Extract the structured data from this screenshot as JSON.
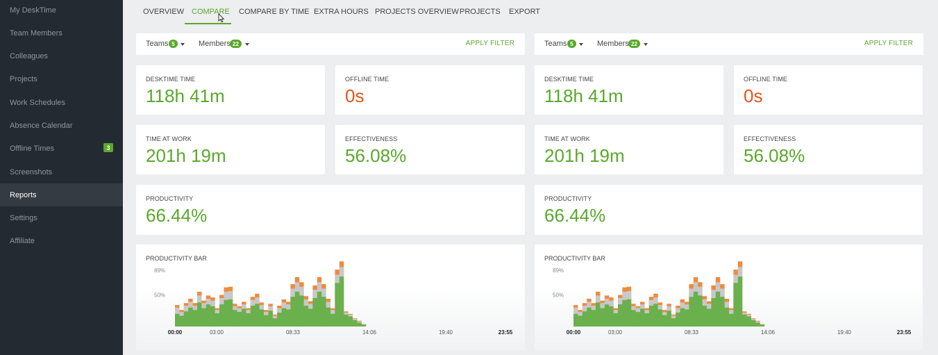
{
  "sidebar": {
    "items": [
      {
        "label": "My DeskTime",
        "name": "sidebar-item-my-desktime"
      },
      {
        "label": "Team Members",
        "name": "sidebar-item-team-members"
      },
      {
        "label": "Colleagues",
        "name": "sidebar-item-colleagues"
      },
      {
        "label": "Projects",
        "name": "sidebar-item-projects"
      },
      {
        "label": "Work Schedules",
        "name": "sidebar-item-work-schedules"
      },
      {
        "label": "Absence Calendar",
        "name": "sidebar-item-absence-calendar"
      },
      {
        "label": "Offline Times",
        "name": "sidebar-item-offline-times",
        "badge": "3"
      },
      {
        "label": "Screenshots",
        "name": "sidebar-item-screenshots"
      },
      {
        "label": "Reports",
        "name": "sidebar-item-reports",
        "active": true
      },
      {
        "label": "Settings",
        "name": "sidebar-item-settings"
      },
      {
        "label": "Affiliate",
        "name": "sidebar-item-affiliate"
      }
    ]
  },
  "tabs": [
    {
      "label": "OVERVIEW"
    },
    {
      "label": "COMPARE",
      "active": true
    },
    {
      "label": "COMPARE BY TIME"
    },
    {
      "label": "EXTRA HOURS"
    },
    {
      "label": "PROJECTS OVERVIEW"
    },
    {
      "label": "PROJECTS"
    },
    {
      "label": "EXPORT"
    }
  ],
  "colors": {
    "accent": "#5aa82c",
    "offline": "#e4541c",
    "bar_orange": "#f08a3c",
    "bar_gray": "#c8c8c8",
    "bar_green": "#6ab04c"
  },
  "panels": [
    {
      "filter": {
        "teams_label": "Teams",
        "teams_count": "5",
        "members_label": "Members",
        "members_count": "22",
        "apply_label": "APPLY FILTER"
      },
      "cards": {
        "desktime": {
          "label": "DESKTIME TIME",
          "value": "118h 41m"
        },
        "offline": {
          "label": "OFFLINE TIME",
          "value": "0s"
        },
        "atwork": {
          "label": "TIME AT WORK",
          "value": "201h 19m"
        },
        "effectiveness": {
          "label": "EFFECTIVENESS",
          "value": "56.08%"
        },
        "productivity": {
          "label": "PRODUCTIVITY",
          "value": "66.44%"
        }
      },
      "prodbar": {
        "label": "PRODUCTIVITY BAR"
      }
    },
    {
      "filter": {
        "teams_label": "Teams",
        "teams_count": "5",
        "members_label": "Members",
        "members_count": "22",
        "apply_label": "APPLY FILTER"
      },
      "cards": {
        "desktime": {
          "label": "DESKTIME TIME",
          "value": "118h 41m"
        },
        "offline": {
          "label": "OFFLINE TIME",
          "value": "0s"
        },
        "atwork": {
          "label": "TIME AT WORK",
          "value": "201h 19m"
        },
        "effectiveness": {
          "label": "EFFECTIVENESS",
          "value": "56.08%"
        },
        "productivity": {
          "label": "PRODUCTIVITY",
          "value": "66.44%"
        }
      },
      "prodbar": {
        "label": "PRODUCTIVITY BAR"
      }
    }
  ],
  "chart_data": [
    {
      "type": "area",
      "title": "PRODUCTIVITY BAR",
      "y_ticks": [
        "89%",
        "50%"
      ],
      "x_ticks": [
        "00:00",
        "03:00",
        "08:33",
        "14:06",
        "19:40",
        "23:55"
      ],
      "bold_x_ticks": [
        "00:00",
        "23:55"
      ],
      "ylim": [
        0,
        89
      ],
      "series": [
        {
          "color": "bar_green",
          "values": [
            20,
            17,
            24,
            30,
            26,
            38,
            29,
            35,
            32,
            21,
            35,
            42,
            43,
            26,
            23,
            28,
            21,
            33,
            36,
            27,
            18,
            25,
            13,
            22,
            29,
            27,
            47,
            55,
            49,
            33,
            28,
            45,
            55,
            47,
            30,
            20,
            69,
            79,
            19,
            16,
            10,
            6,
            3,
            0,
            0,
            0,
            0,
            0,
            0,
            0,
            0,
            0,
            0,
            0,
            0,
            0
          ]
        },
        {
          "color": "bar_gray",
          "values": [
            10,
            6,
            9,
            9,
            7,
            11,
            8,
            9,
            9,
            5,
            10,
            13,
            13,
            6,
            6,
            7,
            5,
            9,
            10,
            7,
            5,
            7,
            4,
            7,
            9,
            8,
            13,
            15,
            14,
            10,
            8,
            13,
            15,
            13,
            9,
            6,
            13,
            15,
            3,
            3,
            2,
            2,
            1,
            0,
            0,
            0,
            0,
            0,
            0,
            0,
            0,
            0,
            0,
            0,
            0,
            0
          ]
        },
        {
          "color": "bar_orange",
          "values": [
            4,
            3,
            4,
            5,
            4,
            6,
            4,
            5,
            5,
            3,
            5,
            7,
            7,
            4,
            3,
            4,
            3,
            5,
            6,
            4,
            3,
            4,
            2,
            4,
            5,
            4,
            7,
            8,
            7,
            5,
            4,
            7,
            8,
            7,
            5,
            3,
            8,
            9,
            2,
            1,
            1,
            1,
            0,
            0,
            0,
            0,
            0,
            0,
            0,
            0,
            0,
            0,
            0,
            0,
            0,
            0
          ]
        }
      ]
    },
    {
      "type": "area",
      "title": "PRODUCTIVITY BAR",
      "y_ticks": [
        "89%",
        "50%"
      ],
      "x_ticks": [
        "00:00",
        "03:00",
        "08:33",
        "14:06",
        "19:40",
        "23:55"
      ],
      "bold_x_ticks": [
        "00:00",
        "23:55"
      ],
      "ylim": [
        0,
        89
      ],
      "series": [
        {
          "color": "bar_green",
          "values": [
            20,
            17,
            24,
            30,
            26,
            38,
            29,
            35,
            32,
            21,
            35,
            42,
            43,
            26,
            23,
            28,
            21,
            33,
            36,
            27,
            18,
            25,
            13,
            22,
            29,
            27,
            47,
            55,
            49,
            33,
            28,
            45,
            55,
            47,
            30,
            20,
            69,
            79,
            19,
            16,
            10,
            6,
            3,
            0,
            0,
            0,
            0,
            0,
            0,
            0,
            0,
            0,
            0,
            0,
            0,
            0
          ]
        },
        {
          "color": "bar_gray",
          "values": [
            10,
            6,
            9,
            9,
            7,
            11,
            8,
            9,
            9,
            5,
            10,
            13,
            13,
            6,
            6,
            7,
            5,
            9,
            10,
            7,
            5,
            7,
            4,
            7,
            9,
            8,
            13,
            15,
            14,
            10,
            8,
            13,
            15,
            13,
            9,
            6,
            13,
            15,
            3,
            3,
            2,
            2,
            1,
            0,
            0,
            0,
            0,
            0,
            0,
            0,
            0,
            0,
            0,
            0,
            0,
            0
          ]
        },
        {
          "color": "bar_orange",
          "values": [
            4,
            3,
            4,
            5,
            4,
            6,
            4,
            5,
            5,
            3,
            5,
            7,
            7,
            4,
            3,
            4,
            3,
            5,
            6,
            4,
            3,
            4,
            2,
            4,
            5,
            4,
            7,
            8,
            7,
            5,
            4,
            7,
            8,
            7,
            5,
            3,
            8,
            9,
            2,
            1,
            1,
            1,
            0,
            0,
            0,
            0,
            0,
            0,
            0,
            0,
            0,
            0,
            0,
            0,
            0,
            0
          ]
        }
      ]
    }
  ]
}
